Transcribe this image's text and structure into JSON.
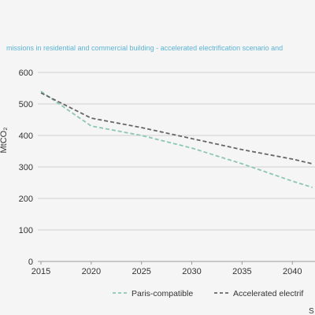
{
  "chart_data": {
    "type": "line",
    "title": "missions in residential and commercial building - accelerated electrification scenario and",
    "ylabel": "MtCO₂",
    "x": [
      2015,
      2020,
      2025,
      2030,
      2035,
      2040,
      2042
    ],
    "xticks": [
      "2015",
      "2020",
      "2025",
      "2030",
      "2035",
      "2040"
    ],
    "yticks": [
      "0",
      "100",
      "200",
      "300",
      "400",
      "500",
      "600"
    ],
    "xlim": [
      2015,
      2042
    ],
    "ylim": [
      0,
      600
    ],
    "grid": true,
    "legend_position": "bottom",
    "series": [
      {
        "name": "Paris-compatible",
        "color": "#8cc7b5",
        "values": [
          540,
          430,
          400,
          360,
          310,
          255,
          235
        ]
      },
      {
        "name": "Accelerated electrif",
        "color": "#666666",
        "values": [
          535,
          455,
          425,
          390,
          355,
          325,
          310
        ]
      }
    ],
    "source_fragment": "S"
  },
  "colors": {
    "title": "#5bb3d6",
    "axis_text": "#333333",
    "grid": "#d0d0d0"
  }
}
